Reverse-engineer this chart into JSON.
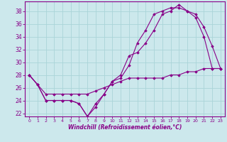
{
  "xlabel": "Windchill (Refroidissement éolien,°C)",
  "xlim": [
    -0.5,
    23.5
  ],
  "ylim": [
    21.5,
    39.5
  ],
  "yticks": [
    22,
    24,
    26,
    28,
    30,
    32,
    34,
    36,
    38
  ],
  "xticks": [
    0,
    1,
    2,
    3,
    4,
    5,
    6,
    7,
    8,
    9,
    10,
    11,
    12,
    13,
    14,
    15,
    16,
    17,
    18,
    19,
    20,
    21,
    22,
    23
  ],
  "background_color": "#cce8ec",
  "grid_color": "#aad4d8",
  "line_color": "#880088",
  "line1_x": [
    0,
    1,
    2,
    3,
    4,
    5,
    6,
    7,
    8,
    9,
    10,
    11,
    12,
    13,
    14,
    15,
    16,
    17,
    18,
    19,
    20,
    21,
    22,
    23
  ],
  "line1_y": [
    28,
    26.5,
    24,
    24,
    24,
    24,
    23.5,
    21.5,
    23,
    25,
    27,
    27.5,
    29.5,
    33,
    35,
    37.5,
    38,
    38.5,
    38.5,
    38,
    37.5,
    35.5,
    32.5,
    29
  ],
  "line2_x": [
    0,
    1,
    2,
    3,
    4,
    5,
    6,
    7,
    8,
    9,
    10,
    11,
    12,
    13,
    14,
    15,
    16,
    17,
    18,
    19,
    20,
    21,
    22,
    23
  ],
  "line2_y": [
    28,
    26.5,
    24,
    24,
    24,
    24,
    23.5,
    21.5,
    23.5,
    25,
    27,
    28,
    31,
    31.5,
    33,
    35,
    37.5,
    38,
    39,
    38,
    37,
    34,
    29,
    29
  ],
  "line3_x": [
    0,
    1,
    2,
    3,
    4,
    5,
    6,
    7,
    8,
    9,
    10,
    11,
    12,
    13,
    14,
    15,
    16,
    17,
    18,
    19,
    20,
    21,
    22,
    23
  ],
  "line3_y": [
    28,
    26.5,
    25,
    25,
    25,
    25,
    25,
    25,
    25.5,
    26,
    26.5,
    27,
    27.5,
    27.5,
    27.5,
    27.5,
    27.5,
    28,
    28,
    28.5,
    28.5,
    29,
    29,
    29
  ]
}
